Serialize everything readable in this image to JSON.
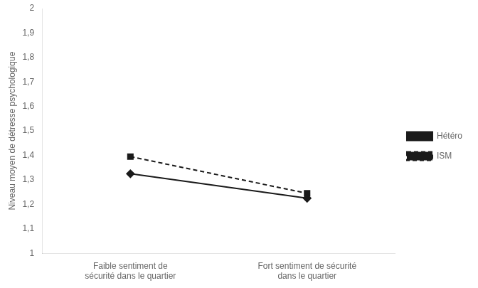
{
  "chart_data": {
    "type": "line",
    "categories": [
      "Faible sentiment de\nsécurité dans le quartier",
      "Fort sentiment de sécurité\ndans le quartier"
    ],
    "series": [
      {
        "name": "Hétéro",
        "color": "#1a1a1a",
        "marker": "diamond",
        "line_style": "solid",
        "values": [
          1.325,
          1.225
        ]
      },
      {
        "name": "ISM",
        "color": "#1a1a1a",
        "marker": "square",
        "line_style": "dashed",
        "values": [
          1.395,
          1.245
        ]
      }
    ],
    "y_label": "Niveau moyen de détresse psychologique",
    "ylim": [
      1.0,
      2.0
    ],
    "yticks": [
      1,
      {
        "value": 1.1,
        "label": "1,1"
      },
      {
        "value": 1.2,
        "label": "1,2"
      },
      {
        "value": 1.3,
        "label": "1,3"
      },
      {
        "value": 1.4,
        "label": "1,4"
      },
      {
        "value": 1.5,
        "label": "1,5"
      },
      {
        "value": 1.6,
        "label": "1,6"
      },
      {
        "value": 1.7,
        "label": "1,7"
      },
      {
        "value": 1.8,
        "label": "1,8"
      },
      {
        "value": 1.9,
        "label": "1,9"
      },
      2
    ],
    "grid": false,
    "legend": "right"
  }
}
